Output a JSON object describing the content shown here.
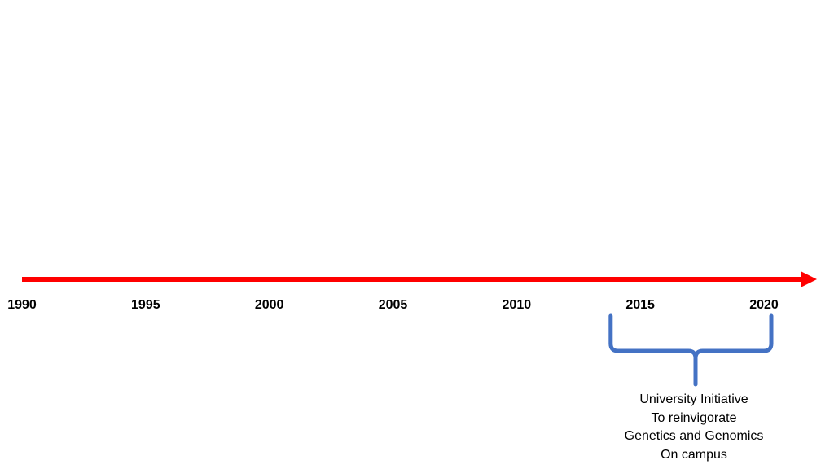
{
  "colors": {
    "arrow": "#ff0000",
    "bracket": "#4472c4",
    "text": "#000000",
    "background": "#ffffff"
  },
  "timeline": {
    "start_year": 1990,
    "end_year": 2020,
    "ticks": [
      {
        "year": 1990,
        "label": "1990"
      },
      {
        "year": 1995,
        "label": "1995"
      },
      {
        "year": 2000,
        "label": "2000"
      },
      {
        "year": 2005,
        "label": "2005"
      },
      {
        "year": 2010,
        "label": "2010"
      },
      {
        "year": 2015,
        "label": "2015"
      },
      {
        "year": 2020,
        "label": "2020"
      }
    ]
  },
  "span": {
    "from_year": 2014,
    "to_year": 2020,
    "lines": [
      "University Initiative",
      "To reinvigorate",
      "Genetics and Genomics",
      "On campus"
    ]
  }
}
